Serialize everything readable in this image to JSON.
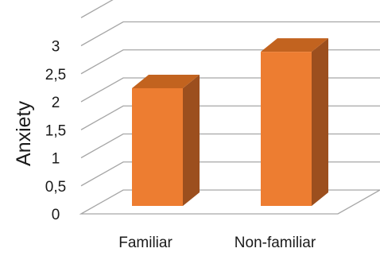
{
  "chart_data": {
    "type": "bar",
    "style": "3d-column",
    "title": "",
    "xlabel": "",
    "ylabel": "Anxiety",
    "categories": [
      "Familiar",
      "Non-familiar"
    ],
    "values": [
      2.1,
      2.75
    ],
    "ylim": [
      0,
      3.5
    ],
    "yticks": [
      "0",
      "0,5",
      "1",
      "1,5",
      "2",
      "2,5",
      "3"
    ],
    "grid": true,
    "legend": "none"
  },
  "colors": {
    "bar_front": "#ED7D31",
    "bar_side": "#9C4F1E",
    "bar_top": "#C2631F",
    "grid": "#A6A6A6",
    "text": "#1A1A1A"
  }
}
